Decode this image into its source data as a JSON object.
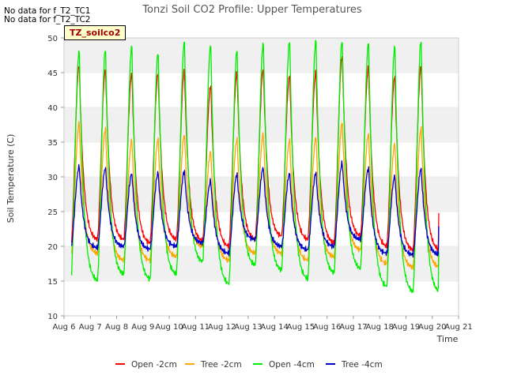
{
  "notes": [
    "No data for f_T2_TC1",
    "No data for f_T2_TC2"
  ],
  "badge": "TZ_soilco2",
  "chart_data": {
    "type": "line",
    "title": "Tonzi Soil CO2 Profile: Upper Temperatures",
    "xlabel": "Time",
    "ylabel": "Soil Temperature (C)",
    "xlim": [
      6,
      21
    ],
    "ylim": [
      10,
      50
    ],
    "x_ticks": [
      6,
      7,
      8,
      9,
      10,
      11,
      12,
      13,
      14,
      15,
      16,
      17,
      18,
      19,
      20,
      21
    ],
    "x_tick_labels": [
      "Aug 6",
      "Aug 7",
      "Aug 8",
      "Aug 9",
      "Aug 10",
      "Aug 11",
      "Aug 12",
      "Aug 13",
      "Aug 14",
      "Aug 15",
      "Aug 16",
      "Aug 17",
      "Aug 18",
      "Aug 19",
      "Aug 20",
      "Aug 21"
    ],
    "y_ticks": [
      10,
      15,
      20,
      25,
      30,
      35,
      40,
      45,
      50
    ],
    "grid": true,
    "legend_position": "bottom",
    "day_start": 6,
    "series": [
      {
        "name": "Open -2cm",
        "color": "#ff0000",
        "lows": [
          20.0,
          21.0,
          21.0,
          20.5,
          21.0,
          20.8,
          20.0,
          21.0,
          21.5,
          21.0,
          20.5,
          21.5,
          20.0,
          19.5
        ],
        "peaks": [
          46.2,
          45.5,
          45.0,
          45.0,
          45.3,
          43.2,
          45.1,
          45.6,
          44.7,
          45.2,
          47.4,
          45.8,
          44.6,
          46.1
        ],
        "start": 24.0,
        "end": 24.8
      },
      {
        "name": "Tree -2cm",
        "color": "#ffa500",
        "lows": [
          18.5,
          19.0,
          18.0,
          18.0,
          18.5,
          20.0,
          18.0,
          19.0,
          19.0,
          18.0,
          18.5,
          19.5,
          17.5,
          17.0
        ],
        "peaks": [
          37.8,
          36.9,
          35.3,
          35.5,
          36.1,
          33.6,
          35.5,
          36.2,
          35.3,
          35.7,
          37.8,
          36.2,
          34.8,
          37.0
        ],
        "start": 20.3,
        "end": 21.8
      },
      {
        "name": "Open -4cm",
        "color": "#00ee00",
        "lows": [
          15.4,
          15.1,
          16.0,
          15.3,
          16.0,
          17.8,
          14.6,
          17.3,
          16.6,
          15.3,
          16.2,
          16.8,
          14.2,
          13.5
        ],
        "peaks": [
          48.3,
          48.4,
          48.9,
          48.0,
          49.5,
          49.1,
          48.3,
          49.3,
          49.7,
          49.7,
          49.7,
          49.4,
          48.9,
          49.7
        ],
        "start": 18.0,
        "end": 19.2
      },
      {
        "name": "Tree -4cm",
        "color": "#0000cc",
        "lows": [
          19.8,
          19.8,
          20.0,
          19.6,
          20.0,
          20.5,
          19.0,
          21.0,
          20.0,
          19.5,
          20.0,
          21.0,
          19.0,
          18.8
        ],
        "peaks": [
          31.5,
          31.3,
          30.5,
          30.6,
          30.8,
          29.4,
          30.4,
          31.3,
          30.5,
          30.6,
          32.0,
          31.2,
          30.1,
          31.2
        ],
        "start": 22.0,
        "end": 22.9
      }
    ]
  }
}
